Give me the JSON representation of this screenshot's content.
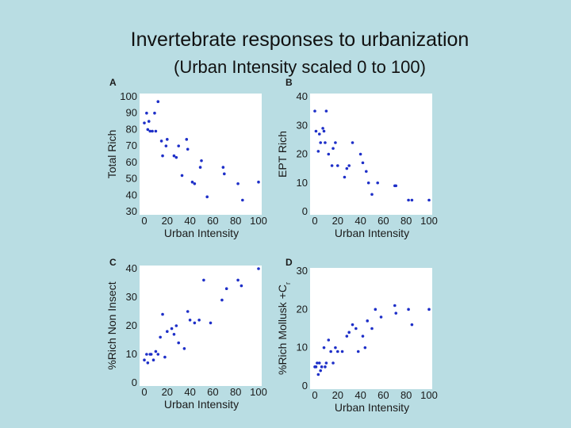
{
  "slide": {
    "title": "Invertebrate responses to urbanization",
    "subtitle": "(Urban Intensity scaled 0 to 100)"
  },
  "chart_data": [
    {
      "type": "scatter",
      "panel": "A",
      "xlabel": "Urban Intensity",
      "ylabel": "Total Rich",
      "xlim": [
        0,
        100
      ],
      "ylim": [
        30,
        100
      ],
      "xticks": [
        0,
        20,
        40,
        60,
        80,
        100
      ],
      "yticks": [
        30,
        40,
        50,
        60,
        70,
        80,
        90,
        100
      ],
      "color": "#1e2fc8",
      "x": [
        0,
        2,
        3,
        4,
        5,
        7,
        9,
        10,
        12,
        15,
        16,
        19,
        20,
        26,
        28,
        30,
        33,
        37,
        38,
        42,
        44,
        49,
        50,
        55,
        69,
        70,
        82,
        86,
        100
      ],
      "y": [
        84,
        90,
        80,
        85,
        79,
        79,
        90,
        79,
        97,
        73,
        64,
        70,
        74,
        64,
        63,
        70,
        52,
        74,
        68,
        48,
        47,
        57,
        61,
        39,
        57,
        53,
        47,
        37,
        48
      ]
    },
    {
      "type": "scatter",
      "panel": "B",
      "xlabel": "Urban Intensity",
      "ylabel": "EPT Rich",
      "xlim": [
        0,
        100
      ],
      "ylim": [
        0,
        40
      ],
      "xticks": [
        0,
        20,
        40,
        60,
        80,
        100
      ],
      "yticks": [
        0,
        10,
        20,
        30,
        40
      ],
      "color": "#1e2fc8",
      "x": [
        0,
        1,
        3,
        4,
        5,
        7,
        8,
        9,
        10,
        12,
        15,
        16,
        18,
        20,
        26,
        28,
        30,
        33,
        40,
        42,
        45,
        47,
        50,
        55,
        70,
        71,
        82,
        85,
        100
      ],
      "y": [
        35,
        28,
        21,
        27,
        24,
        29,
        28,
        24,
        35,
        20,
        16,
        22,
        24,
        16,
        12,
        15,
        16,
        24,
        20,
        17,
        14,
        10,
        6,
        10,
        9,
        9,
        4,
        4,
        4
      ]
    },
    {
      "type": "scatter",
      "panel": "C",
      "xlabel": "Urban Intensity",
      "ylabel": "%Rich Non Insect",
      "xlim": [
        0,
        100
      ],
      "ylim": [
        0,
        40
      ],
      "xticks": [
        0,
        20,
        40,
        60,
        80,
        100
      ],
      "yticks": [
        0,
        10,
        20,
        30,
        40
      ],
      "color": "#1e2fc8",
      "x": [
        0,
        2,
        3,
        5,
        6,
        8,
        10,
        12,
        14,
        16,
        18,
        20,
        24,
        26,
        28,
        30,
        35,
        38,
        40,
        44,
        48,
        52,
        58,
        68,
        72,
        82,
        85,
        100
      ],
      "y": [
        8,
        10,
        7,
        10,
        10,
        8,
        11,
        10,
        16,
        24,
        9,
        18,
        19,
        17,
        20,
        14,
        12,
        25,
        22,
        21,
        22,
        36,
        21,
        29,
        33,
        36,
        34,
        40
      ]
    },
    {
      "type": "scatter",
      "panel": "D",
      "xlabel": "Urban Intensity",
      "ylabel": "%Rich Mollusk +C",
      "ylabel_sub": "r",
      "xlim": [
        0,
        100
      ],
      "ylim": [
        0,
        30
      ],
      "xticks": [
        0,
        20,
        40,
        60,
        80,
        100
      ],
      "yticks": [
        0,
        10,
        20,
        30
      ],
      "color": "#1e2fc8",
      "x": [
        0,
        1,
        2,
        3,
        4,
        5,
        6,
        8,
        9,
        10,
        12,
        14,
        16,
        18,
        20,
        24,
        28,
        30,
        33,
        36,
        38,
        42,
        44,
        46,
        50,
        53,
        58,
        70,
        71,
        82,
        85,
        100
      ],
      "y": [
        5,
        5,
        6,
        3,
        6,
        4,
        5,
        10,
        5,
        6,
        12,
        9,
        6,
        10,
        9,
        9,
        13,
        14,
        16,
        15,
        9,
        13,
        10,
        17,
        15,
        20,
        18,
        21,
        19,
        20,
        16,
        20
      ]
    }
  ]
}
